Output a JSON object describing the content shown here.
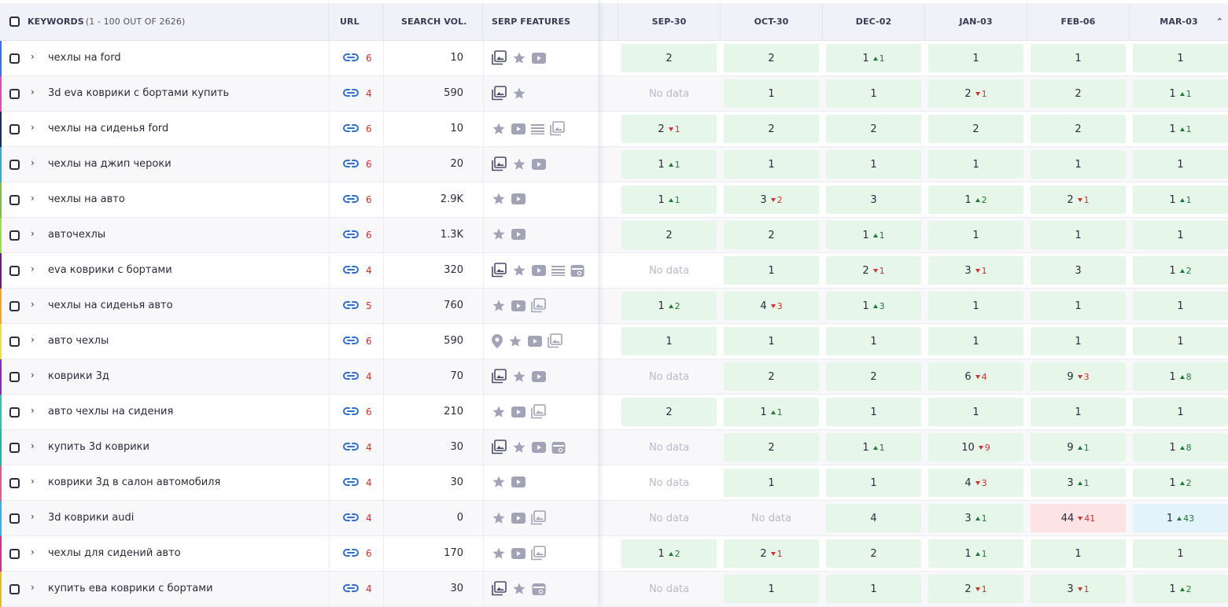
{
  "header": {
    "keywords_label": "KEYWORDS",
    "keywords_count": "(1 - 100 OUT OF 2626)",
    "url_label": "URL",
    "volume_label": "SEARCH VOL.",
    "serp_label": "SERP FEATURES",
    "dates": [
      "SEP-30",
      "OCT-30",
      "DEC-02",
      "JAN-03",
      "FEB-06",
      "MAR-03"
    ],
    "sort_icon": "chevron-up-icon"
  },
  "colors": {
    "accent_green_bg": "#e6f6e9",
    "accent_red_bg": "#fde3e3",
    "accent_blue_bg": "#e3f3fb",
    "up": "#1f7a3a",
    "down": "#d0302f",
    "link": "#2f6fd6"
  },
  "rows": [
    {
      "keyword": "чехлы на ford",
      "url_count": "6",
      "volume": "10",
      "accent": "#3d6ee8",
      "serp": [
        "image-pack",
        "star",
        "video"
      ],
      "ranks": [
        {
          "v": "2",
          "s": "green"
        },
        {
          "v": "2",
          "s": "green"
        },
        {
          "v": "1",
          "d": "1",
          "dir": "up",
          "s": "green"
        },
        {
          "v": "1",
          "s": "green"
        },
        {
          "v": "1",
          "s": "green"
        },
        {
          "v": "1",
          "s": "green"
        }
      ]
    },
    {
      "keyword": "3d eva коврики с бортами купить",
      "url_count": "4",
      "volume": "590",
      "accent": "#e04fb0",
      "serp": [
        "image-pack",
        "star"
      ],
      "ranks": [
        {
          "v": "No data",
          "s": "nodata"
        },
        {
          "v": "1",
          "s": "green"
        },
        {
          "v": "1",
          "s": "green"
        },
        {
          "v": "2",
          "d": "1",
          "dir": "down",
          "s": "green"
        },
        {
          "v": "2",
          "s": "green"
        },
        {
          "v": "1",
          "d": "1",
          "dir": "up",
          "s": "green"
        }
      ]
    },
    {
      "keyword": "чехлы на сиденья ford",
      "url_count": "6",
      "volume": "10",
      "accent": "#1e2a5a",
      "serp": [
        "star",
        "video",
        "list",
        "gallery"
      ],
      "ranks": [
        {
          "v": "2",
          "d": "1",
          "dir": "down",
          "s": "green"
        },
        {
          "v": "2",
          "s": "green"
        },
        {
          "v": "2",
          "s": "green"
        },
        {
          "v": "2",
          "s": "green"
        },
        {
          "v": "2",
          "s": "green"
        },
        {
          "v": "1",
          "d": "1",
          "dir": "up",
          "s": "green"
        }
      ]
    },
    {
      "keyword": "чехлы на джип чероки",
      "url_count": "6",
      "volume": "20",
      "accent": "#3aa8c8",
      "serp": [
        "image-pack",
        "star",
        "video"
      ],
      "ranks": [
        {
          "v": "1",
          "d": "1",
          "dir": "up",
          "s": "green"
        },
        {
          "v": "1",
          "s": "green"
        },
        {
          "v": "1",
          "s": "green"
        },
        {
          "v": "1",
          "s": "green"
        },
        {
          "v": "1",
          "s": "green"
        },
        {
          "v": "1",
          "s": "green"
        }
      ]
    },
    {
      "keyword": "чехлы на авто",
      "url_count": "6",
      "volume": "2.9K",
      "accent": "#7bc043",
      "serp": [
        "star",
        "video"
      ],
      "ranks": [
        {
          "v": "1",
          "d": "1",
          "dir": "up",
          "s": "green"
        },
        {
          "v": "3",
          "d": "2",
          "dir": "down",
          "s": "green"
        },
        {
          "v": "3",
          "s": "green"
        },
        {
          "v": "1",
          "d": "2",
          "dir": "up",
          "s": "green"
        },
        {
          "v": "2",
          "d": "1",
          "dir": "down",
          "s": "green"
        },
        {
          "v": "1",
          "d": "1",
          "dir": "up",
          "s": "green"
        }
      ]
    },
    {
      "keyword": "авточехлы",
      "url_count": "6",
      "volume": "1.3K",
      "accent": "#9be04a",
      "serp": [
        "star",
        "video"
      ],
      "ranks": [
        {
          "v": "2",
          "s": "green"
        },
        {
          "v": "2",
          "s": "green"
        },
        {
          "v": "1",
          "d": "1",
          "dir": "up",
          "s": "green"
        },
        {
          "v": "1",
          "s": "green"
        },
        {
          "v": "1",
          "s": "green"
        },
        {
          "v": "1",
          "s": "green"
        }
      ]
    },
    {
      "keyword": "eva коврики с бортами",
      "url_count": "4",
      "volume": "320",
      "accent": "#6a1e7a",
      "serp": [
        "image-pack",
        "star",
        "video",
        "list",
        "shopping"
      ],
      "ranks": [
        {
          "v": "No data",
          "s": "nodata"
        },
        {
          "v": "1",
          "s": "green"
        },
        {
          "v": "2",
          "d": "1",
          "dir": "down",
          "s": "green"
        },
        {
          "v": "3",
          "d": "1",
          "dir": "down",
          "s": "green"
        },
        {
          "v": "3",
          "s": "green"
        },
        {
          "v": "1",
          "d": "2",
          "dir": "up",
          "s": "green"
        }
      ]
    },
    {
      "keyword": "чехлы на сиденья авто",
      "url_count": "5",
      "volume": "760",
      "accent": "#f5a623",
      "serp": [
        "star",
        "video",
        "gallery"
      ],
      "ranks": [
        {
          "v": "1",
          "d": "2",
          "dir": "up",
          "s": "green"
        },
        {
          "v": "4",
          "d": "3",
          "dir": "down",
          "s": "green"
        },
        {
          "v": "1",
          "d": "3",
          "dir": "up",
          "s": "green"
        },
        {
          "v": "1",
          "s": "green"
        },
        {
          "v": "1",
          "s": "green"
        },
        {
          "v": "1",
          "s": "green"
        }
      ]
    },
    {
      "keyword": "авто чехлы",
      "url_count": "6",
      "volume": "590",
      "accent": "#f0e040",
      "serp": [
        "location",
        "star",
        "video",
        "gallery"
      ],
      "ranks": [
        {
          "v": "1",
          "s": "green"
        },
        {
          "v": "1",
          "s": "green"
        },
        {
          "v": "1",
          "s": "green"
        },
        {
          "v": "1",
          "s": "green"
        },
        {
          "v": "1",
          "s": "green"
        },
        {
          "v": "1",
          "s": "green"
        }
      ]
    },
    {
      "keyword": "коврики 3д",
      "url_count": "4",
      "volume": "70",
      "accent": "#8e2bb5",
      "serp": [
        "image-pack",
        "star",
        "video"
      ],
      "ranks": [
        {
          "v": "No data",
          "s": "nodata"
        },
        {
          "v": "2",
          "s": "green"
        },
        {
          "v": "2",
          "s": "green"
        },
        {
          "v": "6",
          "d": "4",
          "dir": "down",
          "s": "green"
        },
        {
          "v": "9",
          "d": "3",
          "dir": "down",
          "s": "green"
        },
        {
          "v": "1",
          "d": "8",
          "dir": "up",
          "s": "green"
        }
      ]
    },
    {
      "keyword": "авто чехлы на сидения",
      "url_count": "6",
      "volume": "210",
      "accent": "#2ec4a8",
      "serp": [
        "star",
        "video",
        "gallery"
      ],
      "ranks": [
        {
          "v": "2",
          "s": "green"
        },
        {
          "v": "1",
          "d": "1",
          "dir": "up",
          "s": "green"
        },
        {
          "v": "1",
          "s": "green"
        },
        {
          "v": "1",
          "s": "green"
        },
        {
          "v": "1",
          "s": "green"
        },
        {
          "v": "1",
          "s": "green"
        }
      ]
    },
    {
      "keyword": "купить 3d коврики",
      "url_count": "4",
      "volume": "30",
      "accent": "#1fb5a5",
      "serp": [
        "image-pack",
        "star",
        "video",
        "shopping"
      ],
      "ranks": [
        {
          "v": "No data",
          "s": "nodata"
        },
        {
          "v": "2",
          "s": "green"
        },
        {
          "v": "1",
          "d": "1",
          "dir": "up",
          "s": "green"
        },
        {
          "v": "10",
          "d": "9",
          "dir": "down",
          "s": "green"
        },
        {
          "v": "9",
          "d": "1",
          "dir": "up",
          "s": "green"
        },
        {
          "v": "1",
          "d": "8",
          "dir": "up",
          "s": "green"
        }
      ]
    },
    {
      "keyword": "коврики 3д в салон автомобиля",
      "url_count": "4",
      "volume": "30",
      "accent": "#e05a8a",
      "serp": [
        "star",
        "video"
      ],
      "ranks": [
        {
          "v": "No data",
          "s": "nodata"
        },
        {
          "v": "1",
          "s": "green"
        },
        {
          "v": "1",
          "s": "green"
        },
        {
          "v": "4",
          "d": "3",
          "dir": "down",
          "s": "green"
        },
        {
          "v": "3",
          "d": "1",
          "dir": "up",
          "s": "green"
        },
        {
          "v": "1",
          "d": "2",
          "dir": "up",
          "s": "green"
        }
      ]
    },
    {
      "keyword": "3d коврики audi",
      "url_count": "4",
      "volume": "0",
      "accent": "#3ab0e0",
      "serp": [
        "star",
        "video",
        "gallery"
      ],
      "ranks": [
        {
          "v": "No data",
          "s": "nodata"
        },
        {
          "v": "No data",
          "s": "nodata"
        },
        {
          "v": "4",
          "s": "green"
        },
        {
          "v": "3",
          "d": "1",
          "dir": "up",
          "s": "green"
        },
        {
          "v": "44",
          "d": "41",
          "dir": "down",
          "s": "red"
        },
        {
          "v": "1",
          "d": "43",
          "dir": "up",
          "s": "blue"
        }
      ]
    },
    {
      "keyword": "чехлы для сидений авто",
      "url_count": "6",
      "volume": "170",
      "accent": "#d03090",
      "serp": [
        "star",
        "video",
        "gallery"
      ],
      "ranks": [
        {
          "v": "1",
          "d": "2",
          "dir": "up",
          "s": "green"
        },
        {
          "v": "2",
          "d": "1",
          "dir": "down",
          "s": "green"
        },
        {
          "v": "2",
          "s": "green"
        },
        {
          "v": "1",
          "d": "1",
          "dir": "up",
          "s": "green"
        },
        {
          "v": "1",
          "s": "green"
        },
        {
          "v": "1",
          "s": "green"
        }
      ]
    },
    {
      "keyword": "купить ева коврики с бортами",
      "url_count": "4",
      "volume": "30",
      "accent": "#e0c020",
      "serp": [
        "image-pack",
        "star",
        "shopping"
      ],
      "ranks": [
        {
          "v": "No data",
          "s": "nodata"
        },
        {
          "v": "1",
          "s": "green"
        },
        {
          "v": "1",
          "s": "green"
        },
        {
          "v": "2",
          "d": "1",
          "dir": "down",
          "s": "green"
        },
        {
          "v": "3",
          "d": "1",
          "dir": "down",
          "s": "green"
        },
        {
          "v": "1",
          "d": "2",
          "dir": "up",
          "s": "green"
        }
      ]
    }
  ]
}
